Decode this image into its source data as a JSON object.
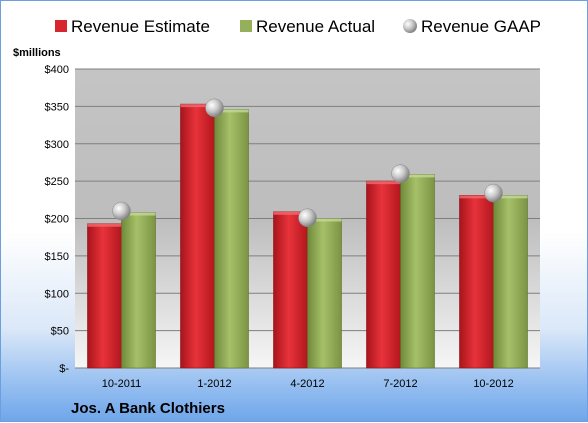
{
  "chart_data": {
    "type": "bar",
    "categories": [
      "10-2011",
      "1-2012",
      "4-2012",
      "7-2012",
      "10-2012"
    ],
    "series": [
      {
        "name": "Revenue Estimate",
        "values": [
          193,
          353,
          209,
          250,
          231
        ],
        "color": "#d7262e"
      },
      {
        "name": "Revenue Actual",
        "values": [
          208,
          346,
          200,
          259,
          231
        ],
        "color": "#94b05a"
      },
      {
        "name": "Revenue GAAP",
        "values": [
          210,
          348,
          201,
          260,
          234
        ],
        "color": "#bfbfbf",
        "marker": "sphere"
      }
    ],
    "ylim": [
      0,
      400
    ],
    "yticks": [
      0,
      50,
      100,
      150,
      200,
      250,
      300,
      350,
      400
    ],
    "ytick_labels": [
      "$-",
      "$50",
      "$100",
      "$150",
      "$200",
      "$250",
      "$300",
      "$350",
      "$400"
    ],
    "ylabel": "$millions",
    "footer": "Jos. A Bank Clothiers",
    "grid": true,
    "legend_position": "top"
  }
}
